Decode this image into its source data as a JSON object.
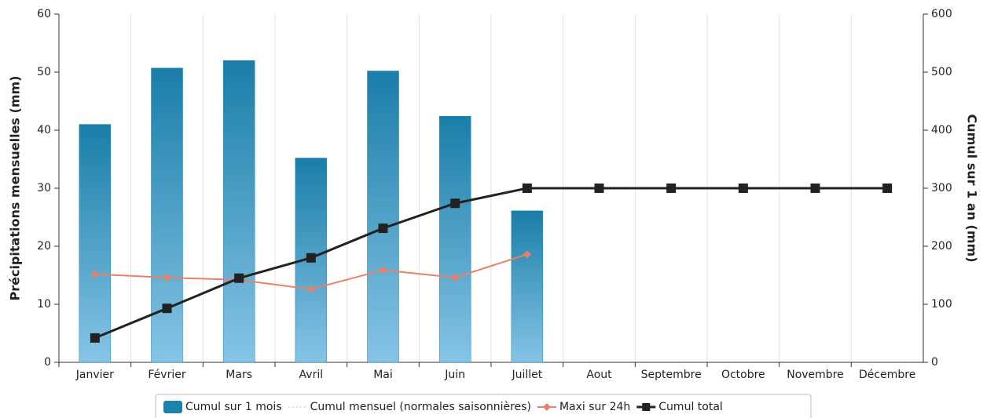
{
  "chart_data": {
    "type": "bar",
    "categories": [
      "Janvier",
      "Février",
      "Mars",
      "Avril",
      "Mai",
      "Juin",
      "Juillet",
      "Aout",
      "Septembre",
      "Octobre",
      "Novembre",
      "Décembre"
    ],
    "y_label": "Précipitations mensuelles (mm)",
    "y2_label": "Cumul sur 1 an (mm)",
    "ylim": [
      0,
      60
    ],
    "yticks": [
      0,
      10,
      20,
      30,
      40,
      50,
      60
    ],
    "y2lim": [
      0,
      600
    ],
    "y2ticks": [
      0,
      100,
      200,
      300,
      400,
      500,
      600
    ],
    "grid": true,
    "series": [
      {
        "name": "Cumul sur 1 mois",
        "type": "bar",
        "color": "#1a84ad",
        "values": [
          41,
          50.7,
          52,
          35.2,
          50.2,
          42.4,
          26.1,
          null,
          null,
          null,
          null,
          null
        ]
      },
      {
        "name": "Cumul mensuel (normales saisonnières)",
        "type": "line",
        "color": "#bbbbbb",
        "values": [
          null,
          null,
          null,
          null,
          null,
          null,
          null,
          null,
          null,
          null,
          null,
          null
        ]
      },
      {
        "name": "Maxi sur 24h",
        "type": "line",
        "color": "#e8806a",
        "values": [
          15.2,
          14.6,
          14.2,
          12.6,
          15.9,
          14.6,
          18.6,
          null,
          null,
          null,
          null,
          null
        ]
      },
      {
        "name": "Cumul total",
        "type": "line",
        "axis": "y2",
        "color": "#222222",
        "values": [
          42,
          93,
          145,
          180,
          231,
          274,
          300,
          300,
          300,
          300,
          300,
          300
        ]
      }
    ]
  }
}
